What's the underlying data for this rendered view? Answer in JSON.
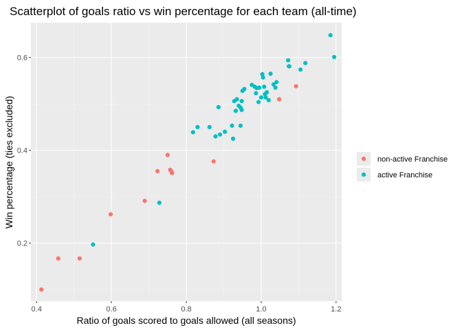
{
  "chart_data": {
    "type": "scatter",
    "title": "Scatterplot of goals ratio vs win percentage for each team (all-time)",
    "xlabel": "Ratio of goals scored to goals allowed (all seasons)",
    "ylabel": "Win percentage (ties excluded)",
    "xlim": [
      0.385,
      1.215
    ],
    "ylim": [
      0.075,
      0.675
    ],
    "x_ticks": [
      0.4,
      0.6,
      0.8,
      1.0,
      1.2
    ],
    "x_tick_labels": [
      "0.4",
      "0.6",
      "0.8",
      "1.0",
      "1.2"
    ],
    "y_ticks": [
      0.2,
      0.4,
      0.6
    ],
    "y_tick_labels": [
      "0.2",
      "0.4",
      "0.6"
    ],
    "grid": true,
    "legend_position": "right",
    "series": [
      {
        "name": "non-active Franchise",
        "color": "#F8766D",
        "points": [
          [
            0.413,
            0.1
          ],
          [
            0.458,
            0.167
          ],
          [
            0.515,
            0.167
          ],
          [
            0.598,
            0.262
          ],
          [
            0.689,
            0.291
          ],
          [
            0.723,
            0.355
          ],
          [
            0.75,
            0.39
          ],
          [
            0.757,
            0.358
          ],
          [
            0.76,
            0.355
          ],
          [
            0.762,
            0.351
          ],
          [
            0.873,
            0.376
          ],
          [
            1.048,
            0.51
          ],
          [
            1.093,
            0.538
          ]
        ]
      },
      {
        "name": "active Franchise",
        "color": "#00BFC4",
        "points": [
          [
            0.551,
            0.197
          ],
          [
            0.728,
            0.287
          ],
          [
            0.818,
            0.439
          ],
          [
            0.83,
            0.45
          ],
          [
            0.862,
            0.45
          ],
          [
            0.878,
            0.43
          ],
          [
            0.886,
            0.493
          ],
          [
            0.89,
            0.434
          ],
          [
            0.903,
            0.44
          ],
          [
            0.922,
            0.453
          ],
          [
            0.925,
            0.425
          ],
          [
            0.928,
            0.506
          ],
          [
            0.932,
            0.485
          ],
          [
            0.935,
            0.51
          ],
          [
            0.94,
            0.496
          ],
          [
            0.945,
            0.453
          ],
          [
            0.945,
            0.492
          ],
          [
            0.948,
            0.487
          ],
          [
            0.948,
            0.506
          ],
          [
            0.95,
            0.528
          ],
          [
            0.955,
            0.532
          ],
          [
            0.975,
            0.541
          ],
          [
            0.983,
            0.537
          ],
          [
            0.986,
            0.523
          ],
          [
            0.988,
            0.534
          ],
          [
            0.993,
            0.504
          ],
          [
            0.995,
            0.535
          ],
          [
            1.0,
            0.514
          ],
          [
            1.003,
            0.564
          ],
          [
            1.005,
            0.557
          ],
          [
            1.008,
            0.537
          ],
          [
            1.01,
            0.521
          ],
          [
            1.012,
            0.514
          ],
          [
            1.015,
            0.525
          ],
          [
            1.02,
            0.508
          ],
          [
            1.025,
            0.565
          ],
          [
            1.033,
            0.542
          ],
          [
            1.038,
            0.535
          ],
          [
            1.041,
            0.547
          ],
          [
            1.072,
            0.594
          ],
          [
            1.074,
            0.581
          ],
          [
            1.075,
            0.581
          ],
          [
            1.105,
            0.574
          ],
          [
            1.118,
            0.588
          ],
          [
            1.185,
            0.648
          ],
          [
            1.195,
            0.601
          ]
        ]
      }
    ]
  }
}
